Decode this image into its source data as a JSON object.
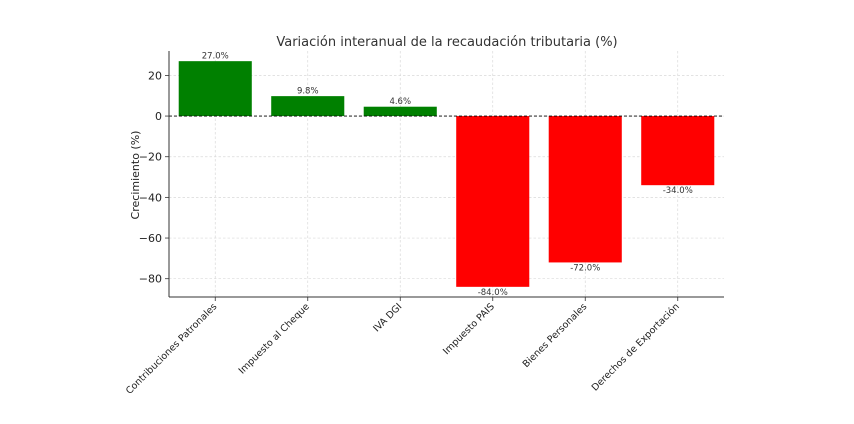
{
  "chart_data": {
    "type": "bar",
    "title": "Variación interanual de la recaudación tributaria (%)",
    "xlabel": "",
    "ylabel": "Crecimiento (%)",
    "categories": [
      "Contribuciones Patronales",
      "Impuesto al Cheque",
      "IVA DGI",
      "Impuesto PAIS",
      "Bienes Personales",
      "Derechos de Exportación"
    ],
    "values": [
      27.0,
      9.8,
      4.6,
      -84.0,
      -72.0,
      -34.0
    ],
    "data_labels": [
      "27.0%",
      "9.8%",
      "4.6%",
      "-84.0%",
      "-72.0%",
      "-34.0%"
    ],
    "yticks": [
      20,
      0,
      -20,
      -40,
      -60,
      -80
    ],
    "ytick_labels": [
      "20",
      "0",
      "−20",
      "−40",
      "−60",
      "−80"
    ],
    "ylim": [
      -89,
      32
    ],
    "grid": true,
    "zero_line": true,
    "colors": {
      "positive": "#008000",
      "negative": "#ff0000"
    }
  }
}
